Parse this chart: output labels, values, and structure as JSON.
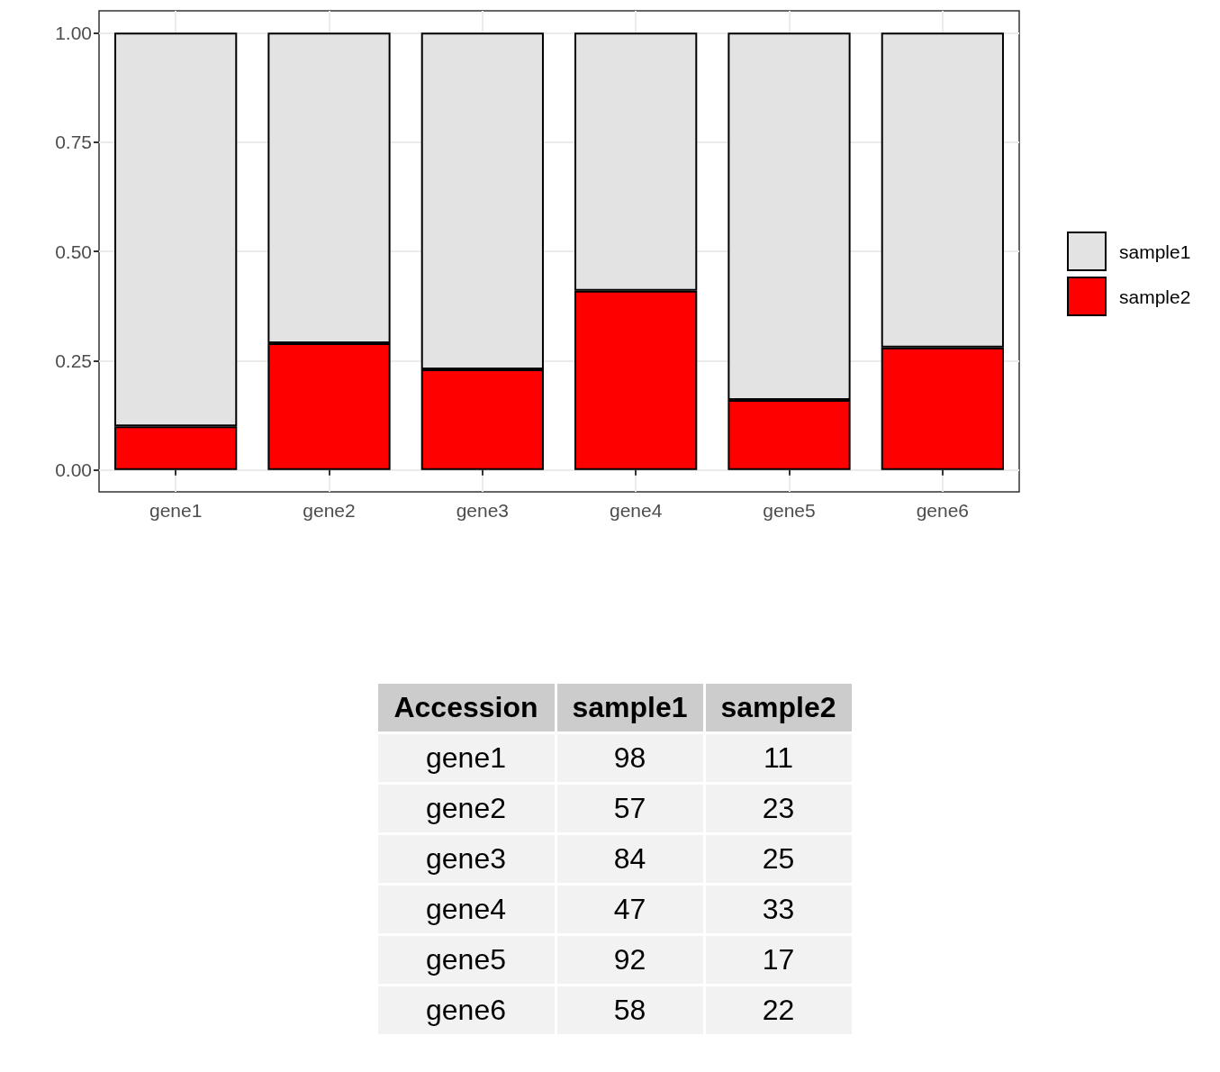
{
  "chart_data": [
    {
      "type": "bar",
      "stacked": true,
      "categories": [
        "gene1",
        "gene2",
        "gene3",
        "gene4",
        "gene5",
        "gene6"
      ],
      "series": [
        {
          "name": "sample2",
          "color": "#ff0000",
          "values": [
            0.1,
            0.29,
            0.23,
            0.41,
            0.16,
            0.28
          ]
        },
        {
          "name": "sample1",
          "color": "#e3e3e3",
          "values": [
            0.9,
            0.71,
            0.77,
            0.59,
            0.84,
            0.72
          ]
        }
      ],
      "ylim": [
        -0.05,
        1.05
      ],
      "yticks": [
        {
          "value": 0,
          "label": "0.00"
        },
        {
          "value": 0.25,
          "label": "0.25"
        },
        {
          "value": 0.5,
          "label": "0.50"
        },
        {
          "value": 0.75,
          "label": "0.75"
        },
        {
          "value": 1,
          "label": "1.00"
        }
      ],
      "grid": true,
      "legend": "right"
    },
    {
      "type": "other",
      "xlabel": "Accession",
      "categories": [
        "gene1",
        "gene2",
        "gene3",
        "gene4",
        "gene5",
        "gene6"
      ],
      "data_labels": true,
      "series": [
        {
          "name": "sample1",
          "values": [
            98,
            57,
            84,
            47,
            92,
            58
          ]
        },
        {
          "name": "sample2",
          "values": [
            11,
            23,
            25,
            33,
            17,
            22
          ]
        }
      ]
    }
  ]
}
